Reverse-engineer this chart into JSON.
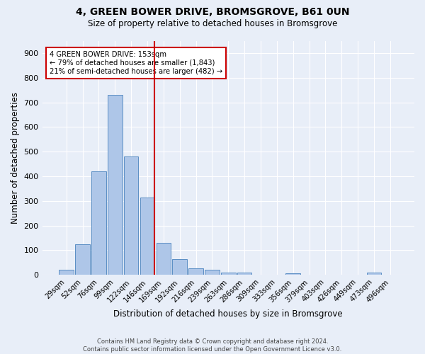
{
  "title": "4, GREEN BOWER DRIVE, BROMSGROVE, B61 0UN",
  "subtitle": "Size of property relative to detached houses in Bromsgrove",
  "xlabel": "Distribution of detached houses by size in Bromsgrove",
  "ylabel": "Number of detached properties",
  "footer_line1": "Contains HM Land Registry data © Crown copyright and database right 2024.",
  "footer_line2": "Contains public sector information licensed under the Open Government Licence v3.0.",
  "bin_labels": [
    "29sqm",
    "52sqm",
    "76sqm",
    "99sqm",
    "122sqm",
    "146sqm",
    "169sqm",
    "192sqm",
    "216sqm",
    "239sqm",
    "263sqm",
    "286sqm",
    "309sqm",
    "333sqm",
    "356sqm",
    "379sqm",
    "403sqm",
    "426sqm",
    "449sqm",
    "473sqm",
    "496sqm"
  ],
  "bar_heights": [
    20,
    125,
    420,
    730,
    480,
    315,
    130,
    65,
    27,
    22,
    10,
    8,
    0,
    0,
    7,
    0,
    0,
    0,
    0,
    8,
    0
  ],
  "bar_color": "#aec6e8",
  "bar_edgecolor": "#5b8ec4",
  "bg_color": "#e8eef8",
  "grid_color": "#ffffff",
  "vline_color": "#cc0000",
  "annotation_text": "4 GREEN BOWER DRIVE: 153sqm\n← 79% of detached houses are smaller (1,843)\n21% of semi-detached houses are larger (482) →",
  "annotation_box_edgecolor": "#cc0000",
  "ylim": [
    0,
    950
  ],
  "yticks": [
    0,
    100,
    200,
    300,
    400,
    500,
    600,
    700,
    800,
    900
  ]
}
